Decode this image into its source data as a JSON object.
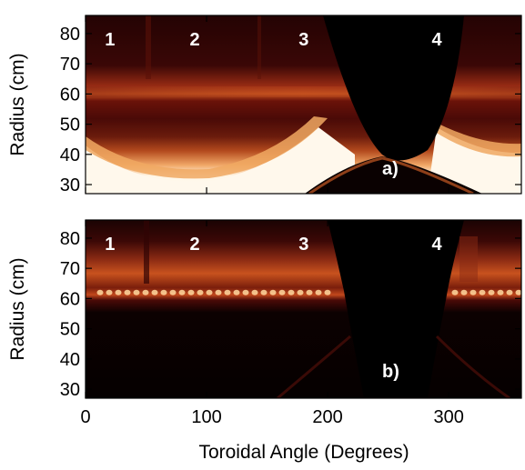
{
  "chart_data": [
    {
      "type": "heatmap",
      "panel_label": "a)",
      "region_labels": [
        "1",
        "2",
        "3",
        "4"
      ],
      "region_label_x": [
        10,
        80,
        170,
        280
      ],
      "ylabel": "Radius (cm)",
      "xlim": [
        0,
        360
      ],
      "ylim": [
        27,
        86
      ],
      "y_ticks": [
        30,
        40,
        50,
        60,
        70,
        80
      ],
      "x_ticks": [
        0,
        100,
        200,
        300
      ],
      "colormap": [
        "#000000",
        "#5a0a06",
        "#b3401c",
        "#f0a060",
        "#fff7ea"
      ],
      "grid": false
    },
    {
      "type": "heatmap",
      "panel_label": "b)",
      "region_labels": [
        "1",
        "2",
        "3",
        "4"
      ],
      "region_label_x": [
        10,
        80,
        170,
        280
      ],
      "ylabel": "Radius (cm)",
      "xlabel": "Toroidal Angle (Degrees)",
      "xlim": [
        0,
        360
      ],
      "ylim": [
        27,
        86
      ],
      "y_ticks": [
        30,
        40,
        50,
        60,
        70,
        80
      ],
      "x_ticks": [
        0,
        100,
        200,
        300
      ],
      "colormap": [
        "#000000",
        "#5a0a06",
        "#b3401c",
        "#f0a060",
        "#fff7ea"
      ],
      "grid": false
    }
  ]
}
